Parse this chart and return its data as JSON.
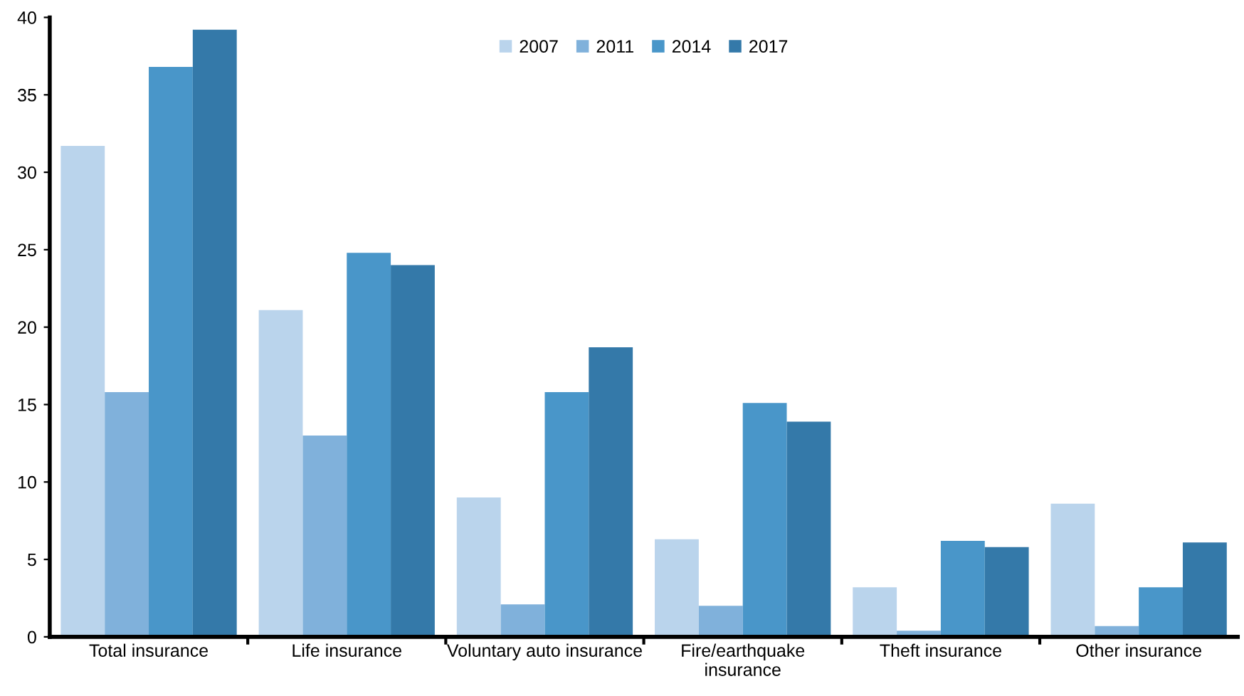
{
  "chart_data": {
    "type": "bar",
    "categories": [
      "Total insurance",
      "Life insurance",
      "Voluntary auto insurance",
      "Fire/earthquake\ninsurance",
      "Theft insurance",
      "Other insurance"
    ],
    "series": [
      {
        "name": "2007",
        "color": "#bad4ec",
        "values": [
          31.7,
          21.1,
          9.0,
          6.3,
          3.2,
          8.6
        ]
      },
      {
        "name": "2011",
        "color": "#80b1db",
        "values": [
          15.8,
          13.0,
          2.1,
          2.0,
          0.4,
          0.7
        ]
      },
      {
        "name": "2014",
        "color": "#4996c9",
        "values": [
          36.8,
          24.8,
          15.8,
          15.1,
          6.2,
          3.2
        ]
      },
      {
        "name": "2017",
        "color": "#3479a9",
        "values": [
          39.2,
          24.0,
          18.7,
          13.9,
          5.8,
          6.1
        ]
      }
    ],
    "ylim": [
      0,
      40
    ],
    "yticks": [
      0,
      5,
      10,
      15,
      20,
      25,
      30,
      35,
      40
    ],
    "grid": false,
    "legend": "top"
  }
}
